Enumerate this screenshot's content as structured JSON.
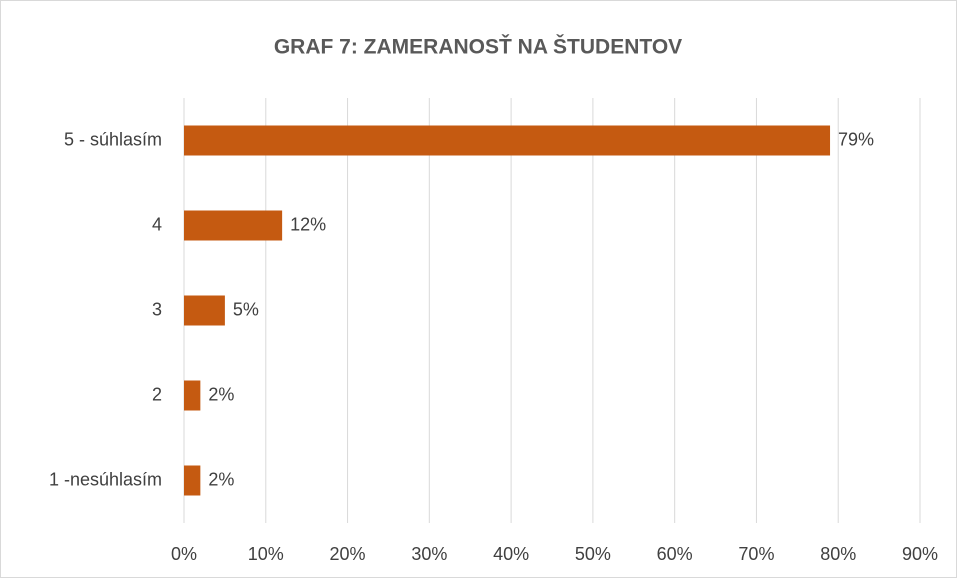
{
  "chart_data": {
    "type": "barh",
    "title": "GRAF 7: ZAMERANOSŤ NA ŠTUDENTOV",
    "categories": [
      "5 - súhlasím",
      "4",
      "3",
      "2",
      "1 -nesúhlasím"
    ],
    "values": [
      79,
      12,
      5,
      2,
      2
    ],
    "value_labels": [
      "79%",
      "12%",
      "5%",
      "2%",
      "2%"
    ],
    "color": "#c55a11",
    "xlim": [
      0,
      90
    ],
    "xticks": [
      {
        "value": 0,
        "label": "0%"
      },
      {
        "value": 10,
        "label": "10%"
      },
      {
        "value": 20,
        "label": "20%"
      },
      {
        "value": 30,
        "label": "30%"
      },
      {
        "value": 40,
        "label": "40%"
      },
      {
        "value": 50,
        "label": "50%"
      },
      {
        "value": 60,
        "label": "60%"
      },
      {
        "value": 70,
        "label": "70%"
      },
      {
        "value": 80,
        "label": "80%"
      },
      {
        "value": 90,
        "label": "90%"
      }
    ],
    "grid": true
  }
}
